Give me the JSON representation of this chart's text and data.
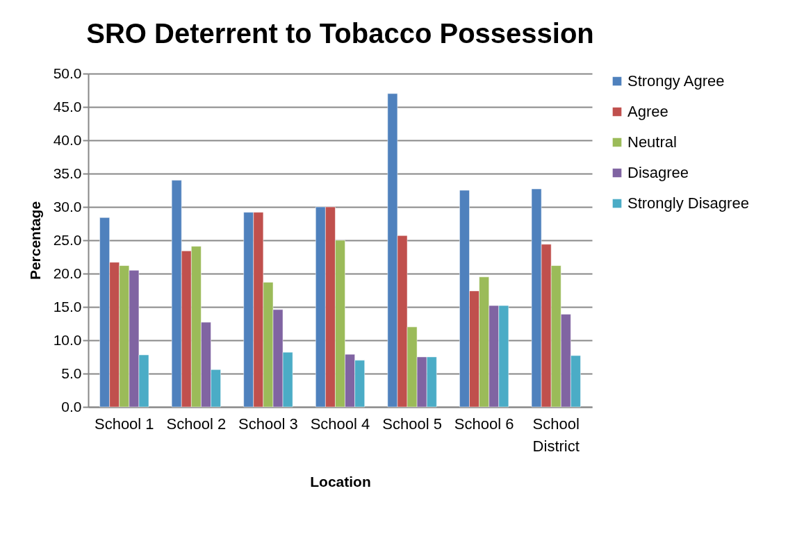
{
  "chart_data": {
    "type": "bar",
    "title": "SRO Deterrent to Tobacco Possession",
    "xlabel": "Location",
    "ylabel": "Percentage",
    "categories": [
      "School 1",
      "School 2",
      "School 3",
      "School 4",
      "School 5",
      "School 6",
      "School District"
    ],
    "series": [
      {
        "name": "Strongy Agree",
        "color": "#4f81bd",
        "values": [
          28.4,
          34.0,
          29.2,
          30.0,
          47.0,
          32.5,
          32.7
        ]
      },
      {
        "name": "Agree",
        "color": "#c0504d",
        "values": [
          21.7,
          23.4,
          29.2,
          30.0,
          25.7,
          17.4,
          24.4
        ]
      },
      {
        "name": "Neutral",
        "color": "#9bbb59",
        "values": [
          21.2,
          24.1,
          18.7,
          25.0,
          12.0,
          19.5,
          21.2
        ]
      },
      {
        "name": "Disagree",
        "color": "#8064a2",
        "values": [
          20.5,
          12.7,
          14.6,
          7.9,
          7.5,
          15.2,
          13.9
        ]
      },
      {
        "name": "Strongly Disagree",
        "color": "#4bacc6",
        "values": [
          7.8,
          5.6,
          8.2,
          7.0,
          7.5,
          15.2,
          7.7
        ]
      }
    ],
    "ylim": [
      0,
      50
    ],
    "yticks": [
      {
        "value": 0,
        "label": "0.0"
      },
      {
        "value": 5,
        "label": "5.0"
      },
      {
        "value": 10,
        "label": "10.0"
      },
      {
        "value": 15,
        "label": "15.0"
      },
      {
        "value": 20,
        "label": "20.0"
      },
      {
        "value": 25,
        "label": "25.0"
      },
      {
        "value": 30,
        "label": "30.0"
      },
      {
        "value": 35,
        "label": "35.0"
      },
      {
        "value": 40,
        "label": "40.0"
      },
      {
        "value": 45,
        "label": "45.0"
      },
      {
        "value": 50,
        "label": "50.0"
      }
    ],
    "grid": "y",
    "legend": "right"
  }
}
